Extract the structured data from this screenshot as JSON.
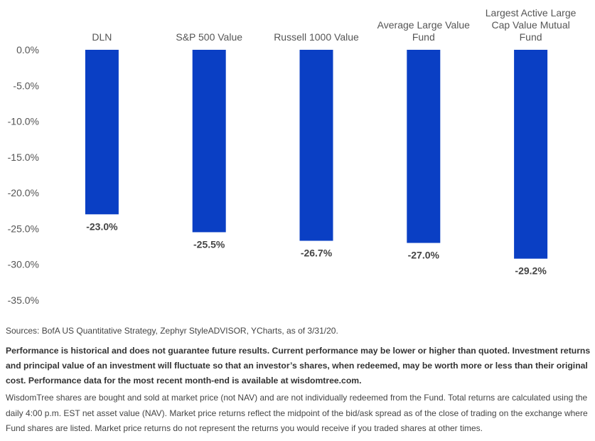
{
  "chart_data": {
    "type": "bar",
    "categories": [
      [
        "DLN"
      ],
      [
        "S&P 500 Value"
      ],
      [
        "Russell 1000 Value"
      ],
      [
        "Average Large Value",
        "Fund"
      ],
      [
        "Largest Active Large",
        "Cap Value Mutual",
        "Fund"
      ]
    ],
    "values": [
      -23.0,
      -25.5,
      -26.7,
      -27.0,
      -29.2
    ],
    "value_labels": [
      "-23.0%",
      "-25.5%",
      "-26.7%",
      "-27.0%",
      "-29.2%"
    ],
    "y_ticks": [
      "0.0%",
      "-5.0%",
      "-10.0%",
      "-15.0%",
      "-20.0%",
      "-25.0%",
      "-30.0%",
      "-35.0%"
    ],
    "y_tick_values": [
      0,
      -5,
      -10,
      -15,
      -20,
      -25,
      -30,
      -35
    ],
    "ylim": [
      -35,
      0
    ],
    "title": "",
    "xlabel": "",
    "ylabel": "",
    "grid": false,
    "legend": "none",
    "bar_color": "#0a3fc4"
  },
  "notes": {
    "sources": "Sources: BofA US Quantitative Strategy, Zephyr StyleADVISOR, YCharts, as of 3/31/20.",
    "performance": "Performance is historical and does not guarantee future results. Current performance may be lower or higher than quoted. Investment returns and principal value of an investment will fluctuate so that an investor’s shares, when redeemed, may be worth more or less than their original cost. Performance data for the most recent month-end is available at wisdomtree.com.",
    "disclosure": "WisdomTree shares are bought and sold at market price (not NAV) and are not individually redeemed from the Fund. Total returns are calculated using the daily 4:00 p.m. EST net asset value (NAV). Market price returns reflect the midpoint of the bid/ask spread as of the close of trading on the exchange where Fund shares are listed. Market price returns do not represent the returns you would receive if you traded shares at other times."
  }
}
